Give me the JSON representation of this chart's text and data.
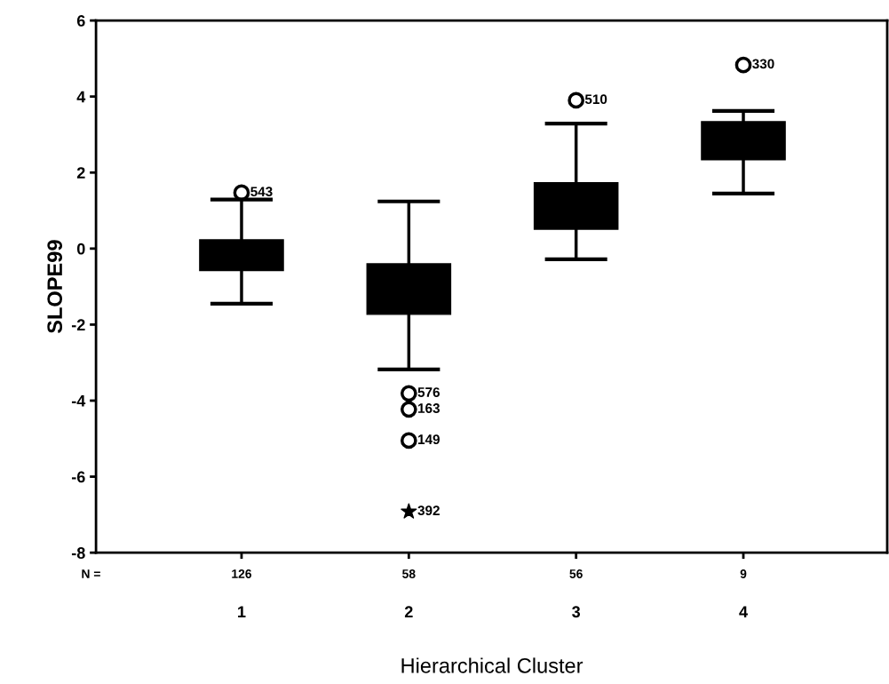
{
  "chart_data": {
    "type": "box",
    "xlabel": "Hierarchical Cluster",
    "ylabel": "SLOPE99",
    "categories": [
      "1",
      "2",
      "3",
      "4"
    ],
    "boxes": [
      {
        "low": -1.45,
        "q1": -0.58,
        "q3": 0.23,
        "high": 1.29
      },
      {
        "low": -3.18,
        "q1": -1.73,
        "q3": -0.4,
        "high": 1.24
      },
      {
        "low": -0.28,
        "q1": 0.51,
        "q3": 1.73,
        "high": 3.29
      },
      {
        "low": 1.45,
        "q1": 2.34,
        "q3": 3.34,
        "high": 3.62
      }
    ],
    "color": "#000000",
    "series": [
      {
        "type": "scatter",
        "marker": "circle",
        "color": "#000000",
        "x": [
          "1",
          "2",
          "2",
          "2",
          "3",
          "4"
        ],
        "values": [
          1.47,
          -3.81,
          -4.23,
          -5.05,
          3.9,
          4.83
        ]
      },
      {
        "type": "scatter",
        "marker": "star",
        "color": "#000000",
        "x": [
          "2"
        ],
        "values": [
          -6.92
        ]
      }
    ],
    "ylim": [
      -8,
      6
    ],
    "yticks": [
      -8,
      -6,
      -4,
      -2,
      0,
      2,
      4,
      6
    ],
    "grid": false,
    "annotations": [
      "N =",
      "126",
      "58",
      "56",
      "9",
      {
        "text": "543",
        "x": "1",
        "y": 1.47
      },
      {
        "text": "576",
        "x": "2",
        "y": -3.81
      },
      {
        "text": "163",
        "x": "2",
        "y": -4.23
      },
      {
        "text": "149",
        "x": "2",
        "y": -5.05
      },
      {
        "text": "392",
        "x": "2",
        "y": -6.92
      },
      {
        "text": "510",
        "x": "3",
        "y": 3.9
      },
      {
        "text": "330",
        "x": "4",
        "y": 4.83
      }
    ]
  }
}
